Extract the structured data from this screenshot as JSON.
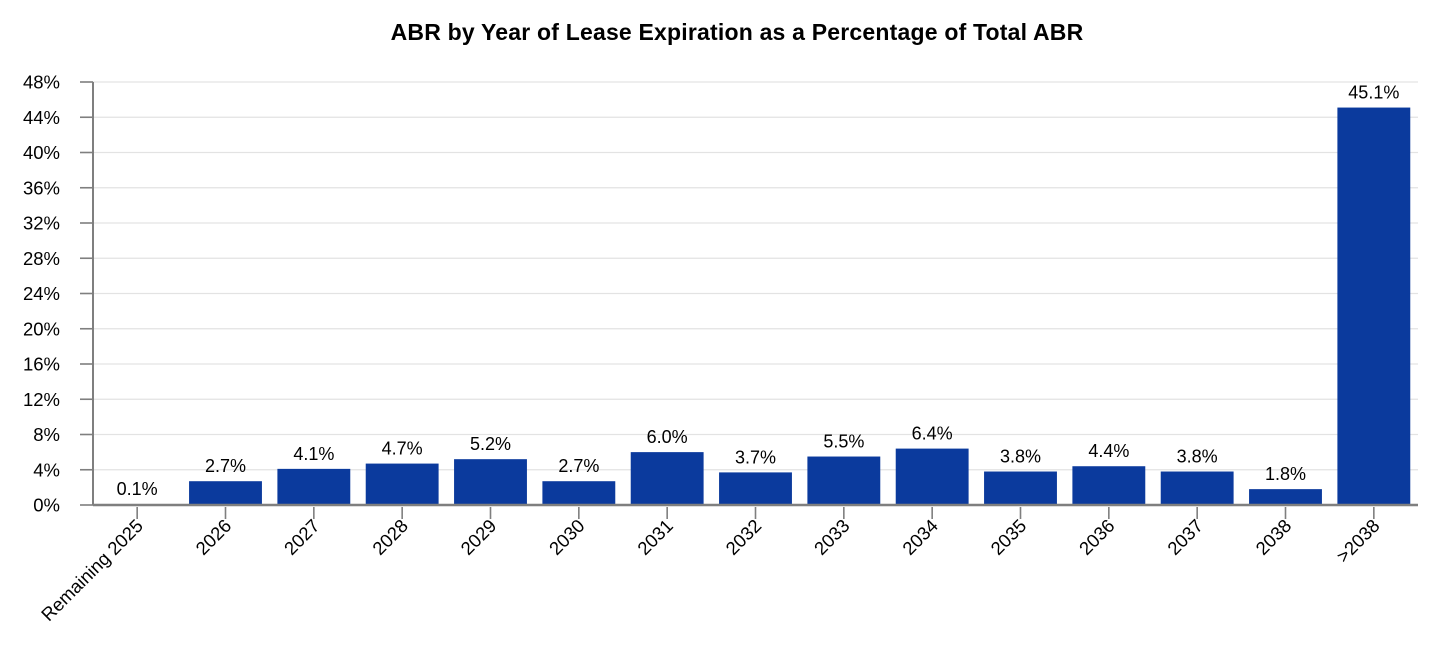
{
  "colors": {
    "bar": "#0b3a9d",
    "gridline": "#e3e3e3",
    "axis": "#7f7f7f",
    "text": "#000000",
    "background": "#ffffff"
  },
  "chart_data": {
    "type": "bar",
    "title": "ABR by Year of Lease Expiration as a Percentage of Total ABR",
    "xlabel": "",
    "ylabel": "",
    "categories": [
      "Remaining 2025",
      "2026",
      "2027",
      "2028",
      "2029",
      "2030",
      "2031",
      "2032",
      "2033",
      "2034",
      "2035",
      "2036",
      "2037",
      "2038",
      ">2038"
    ],
    "values": [
      0.1,
      2.7,
      4.1,
      4.7,
      5.2,
      2.7,
      6.0,
      3.7,
      5.5,
      6.4,
      3.8,
      4.4,
      3.8,
      1.8,
      45.1
    ],
    "data_labels": [
      "0.1%",
      "2.7%",
      "4.1%",
      "4.7%",
      "5.2%",
      "2.7%",
      "6.0%",
      "3.7%",
      "5.5%",
      "6.4%",
      "3.8%",
      "4.4%",
      "3.8%",
      "1.8%",
      "45.1%"
    ],
    "ytick_labels": [
      "0%",
      "4%",
      "8%",
      "12%",
      "16%",
      "20%",
      "24%",
      "28%",
      "32%",
      "36%",
      "40%",
      "44%",
      "48%"
    ],
    "yticks": [
      0,
      4,
      8,
      12,
      16,
      20,
      24,
      28,
      32,
      36,
      40,
      44,
      48
    ],
    "ylim": [
      0,
      48
    ],
    "grid": "horizontal",
    "legend": "none",
    "x_label_rotation_deg": -45
  }
}
